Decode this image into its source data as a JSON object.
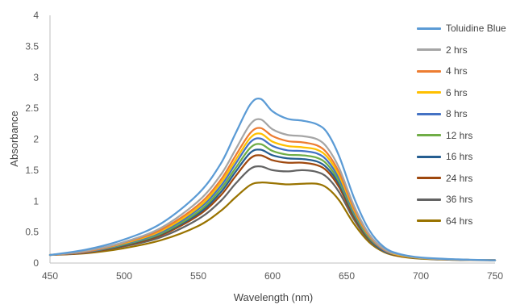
{
  "chart_data": {
    "type": "line",
    "title": "",
    "xlabel": "Wavelength (nm)",
    "ylabel": "Absorbance",
    "xlim": [
      450,
      750
    ],
    "ylim": [
      0,
      4
    ],
    "x_ticks": [
      "450",
      "500",
      "550",
      "600",
      "650",
      "700",
      "750"
    ],
    "y_ticks": [
      "0",
      "0.5",
      "1",
      "1.5",
      "2",
      "2.5",
      "3",
      "3.5",
      "4"
    ],
    "grid": false,
    "legend_position": "right",
    "x": [
      450,
      475,
      500,
      525,
      550,
      565,
      575,
      585,
      592,
      600,
      610,
      620,
      630,
      637,
      645,
      655,
      665,
      675,
      685,
      700,
      725,
      750
    ],
    "series": [
      {
        "name": "Toluidine Blue",
        "color": "#5b9bd5",
        "values": [
          0.13,
          0.22,
          0.38,
          0.64,
          1.12,
          1.6,
          2.09,
          2.56,
          2.65,
          2.45,
          2.33,
          2.3,
          2.24,
          2.1,
          1.72,
          1.05,
          0.54,
          0.26,
          0.15,
          0.09,
          0.06,
          0.045
        ]
      },
      {
        "name": "2 hrs",
        "color": "#a5a5a5",
        "values": [
          0.13,
          0.2,
          0.34,
          0.57,
          1.0,
          1.42,
          1.83,
          2.24,
          2.32,
          2.16,
          2.07,
          2.05,
          2.0,
          1.86,
          1.53,
          0.92,
          0.47,
          0.23,
          0.14,
          0.085,
          0.055,
          0.045
        ]
      },
      {
        "name": "4 hrs",
        "color": "#ed7d31",
        "values": [
          0.13,
          0.19,
          0.33,
          0.54,
          0.94,
          1.34,
          1.73,
          2.1,
          2.18,
          2.05,
          1.97,
          1.95,
          1.9,
          1.77,
          1.46,
          0.88,
          0.45,
          0.22,
          0.14,
          0.085,
          0.055,
          0.045
        ]
      },
      {
        "name": "6 hrs",
        "color": "#ffc000",
        "values": [
          0.13,
          0.19,
          0.32,
          0.52,
          0.9,
          1.29,
          1.66,
          2.02,
          2.09,
          1.96,
          1.89,
          1.87,
          1.83,
          1.71,
          1.41,
          0.85,
          0.44,
          0.22,
          0.13,
          0.08,
          0.055,
          0.045
        ]
      },
      {
        "name": "8 hrs",
        "color": "#4472c4",
        "values": [
          0.13,
          0.18,
          0.31,
          0.5,
          0.87,
          1.24,
          1.6,
          1.95,
          2.01,
          1.89,
          1.82,
          1.81,
          1.77,
          1.65,
          1.36,
          0.82,
          0.43,
          0.21,
          0.13,
          0.08,
          0.055,
          0.045
        ]
      },
      {
        "name": "12 hrs",
        "color": "#70ad47",
        "values": [
          0.13,
          0.18,
          0.3,
          0.48,
          0.83,
          1.19,
          1.53,
          1.86,
          1.92,
          1.81,
          1.75,
          1.74,
          1.7,
          1.59,
          1.31,
          0.79,
          0.41,
          0.21,
          0.13,
          0.08,
          0.055,
          0.045
        ]
      },
      {
        "name": "16 hrs",
        "color": "#255e91",
        "values": [
          0.13,
          0.18,
          0.29,
          0.47,
          0.8,
          1.14,
          1.47,
          1.78,
          1.83,
          1.74,
          1.69,
          1.68,
          1.64,
          1.53,
          1.27,
          0.77,
          0.4,
          0.2,
          0.13,
          0.08,
          0.055,
          0.045
        ]
      },
      {
        "name": "24 hrs",
        "color": "#9e480e",
        "values": [
          0.13,
          0.17,
          0.28,
          0.45,
          0.77,
          1.09,
          1.4,
          1.69,
          1.74,
          1.66,
          1.62,
          1.62,
          1.58,
          1.48,
          1.22,
          0.74,
          0.39,
          0.2,
          0.12,
          0.08,
          0.055,
          0.045
        ]
      },
      {
        "name": "36 hrs",
        "color": "#636363",
        "values": [
          0.13,
          0.17,
          0.27,
          0.42,
          0.71,
          1.0,
          1.28,
          1.52,
          1.56,
          1.5,
          1.48,
          1.5,
          1.47,
          1.38,
          1.14,
          0.7,
          0.37,
          0.19,
          0.12,
          0.075,
          0.05,
          0.045
        ]
      },
      {
        "name": "64 hrs",
        "color": "#997300",
        "values": [
          0.13,
          0.16,
          0.24,
          0.37,
          0.6,
          0.84,
          1.06,
          1.26,
          1.3,
          1.29,
          1.27,
          1.28,
          1.28,
          1.21,
          1.01,
          0.63,
          0.34,
          0.18,
          0.11,
          0.07,
          0.05,
          0.045
        ]
      }
    ]
  }
}
